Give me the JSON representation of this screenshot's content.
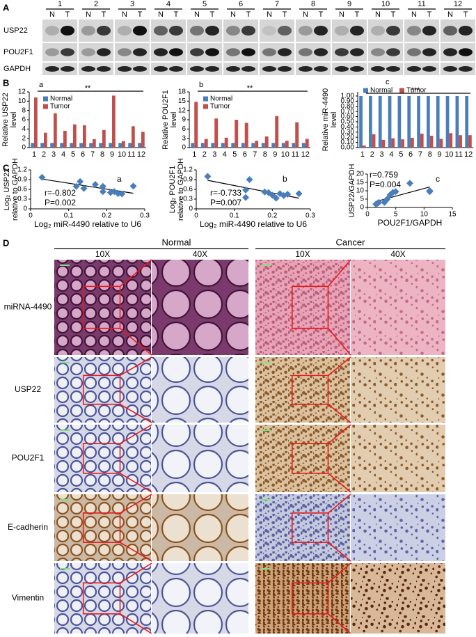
{
  "panel_labels": [
    "A",
    "B",
    "C",
    "D"
  ],
  "blot": {
    "lanes": [
      "1",
      "2",
      "3",
      "4",
      "5",
      "6",
      "7",
      "8",
      "9",
      "10",
      "11",
      "12"
    ],
    "lane_sublabels": [
      "N",
      "T"
    ],
    "proteins": [
      "USP22",
      "POU2F1",
      "GAPDH"
    ]
  },
  "chart_data": [
    {
      "type": "bar",
      "panel_label": "a",
      "y_label": [
        "Relative USP22",
        "level"
      ],
      "annotation": "**",
      "categories": [
        "1",
        "2",
        "3",
        "4",
        "5",
        "6",
        "7",
        "8",
        "9",
        "10",
        "11",
        "12"
      ],
      "series": [
        {
          "name": "Normal",
          "color": "#4a7ebb",
          "values": [
            1,
            1,
            1,
            1,
            1,
            1,
            1,
            1,
            1,
            1,
            1,
            1
          ]
        },
        {
          "name": "Tumor",
          "color": "#c0504d",
          "values": [
            10.8,
            3.2,
            7.4,
            3.6,
            5,
            4.8,
            1.8,
            3.8,
            11.2,
            1.4,
            4.6,
            3.4
          ]
        }
      ],
      "ylim": [
        0,
        12
      ],
      "yticks": [
        0,
        2,
        4,
        6,
        8,
        10,
        12
      ]
    },
    {
      "type": "bar",
      "panel_label": "b",
      "y_label": [
        "Relative POU2F1",
        "level"
      ],
      "annotation": "**",
      "categories": [
        "1",
        "2",
        "3",
        "4",
        "5",
        "6",
        "7",
        "8",
        "9",
        "10",
        "11",
        "12"
      ],
      "series": [
        {
          "name": "Normal",
          "color": "#4a7ebb",
          "values": [
            1.5,
            1.5,
            1.5,
            1.5,
            1.5,
            1.5,
            1.5,
            1.5,
            1.5,
            1.5,
            1.5,
            1.5
          ]
        },
        {
          "name": "Tumor",
          "color": "#c0504d",
          "values": [
            14.8,
            2.8,
            9.4,
            3.2,
            9,
            8,
            2.2,
            3.6,
            10.2,
            2.2,
            8.2,
            2.8
          ]
        }
      ],
      "ylim": [
        0,
        18
      ],
      "yticks": [
        0,
        3,
        6,
        9,
        12,
        15,
        18
      ]
    },
    {
      "type": "bar",
      "panel_label": "c",
      "y_label": [
        "Relative miR-4490",
        "level"
      ],
      "annotation": "***",
      "categories": [
        "1",
        "2",
        "3",
        "4",
        "5",
        "6",
        "7",
        "8",
        "9",
        "10",
        "11",
        "12"
      ],
      "series": [
        {
          "name": "Normal",
          "color": "#4a7ebb",
          "values": [
            1,
            1,
            1,
            1,
            1,
            1,
            1,
            1,
            1,
            1,
            1,
            1
          ]
        },
        {
          "name": "Tumor",
          "color": "#c0504d",
          "values": [
            0.04,
            0.26,
            0.15,
            0.18,
            0.16,
            0.19,
            0.27,
            0.23,
            0.17,
            0.28,
            0.24,
            0.24
          ]
        }
      ],
      "ylim": [
        0,
        1.08
      ],
      "yticks": [
        {
          "value": 0,
          "label": "0.00"
        },
        {
          "value": 0.1,
          "label": "0.10"
        },
        {
          "value": 0.2,
          "label": "0.20"
        },
        {
          "value": 0.3,
          "label": "0.30"
        },
        {
          "value": 0.4,
          "label": "0.40"
        },
        {
          "value": 0.5,
          "label": "0.50"
        },
        {
          "value": 0.6,
          "label": "0.60"
        },
        {
          "value": 0.7,
          "label": "0.70"
        },
        {
          "value": 0.8,
          "label": "0.80"
        },
        {
          "value": 0.9,
          "label": "0.90"
        },
        {
          "value": 1,
          "label": "1.00"
        }
      ]
    },
    {
      "type": "scatter",
      "panel_label": "a",
      "y_label": [
        "Log₂ USP22",
        "relative to GAPDH"
      ],
      "x_label": "Log₂ miR-4490 relative to U6",
      "r_text": "r=-0.802",
      "p_text": "P=0.002",
      "color": "#4a7ebb",
      "x": [
        0.03,
        0.13,
        0.12,
        0.14,
        0.17,
        0.19,
        0.19,
        0.21,
        0.22,
        0.23,
        0.24,
        0.27
      ],
      "values": [
        0.97,
        0.84,
        0.69,
        0.63,
        0.75,
        0.69,
        0.53,
        0.5,
        0.53,
        0.47,
        0.46,
        0.7
      ],
      "xlim": [
        0,
        0.3
      ],
      "xticks": [
        0,
        0.1,
        0.2,
        0.3
      ],
      "ylim": [
        0,
        1.2
      ],
      "yticks": [
        0,
        0.3,
        0.6,
        0.9,
        1.2
      ]
    },
    {
      "type": "scatter",
      "panel_label": "b",
      "y_label": [
        "Log₂ POU2F1",
        "relative to GAPDH"
      ],
      "x_label": "Log₂ miR-4490 relative to U6",
      "r_text": "r=-0.733",
      "p_text": "P=0.007",
      "color": "#4a7ebb",
      "x": [
        0.03,
        0.13,
        0.14,
        0.13,
        0.18,
        0.19,
        0.2,
        0.21,
        0.22,
        0.23,
        0.24,
        0.27
      ],
      "values": [
        1.0,
        0.58,
        0.9,
        0.35,
        0.52,
        0.5,
        0.42,
        0.33,
        0.47,
        0.41,
        0.45,
        0.47
      ],
      "xlim": [
        0,
        0.3
      ],
      "xticks": [
        0,
        0.1,
        0.2,
        0.3
      ],
      "ylim": [
        0,
        1.2
      ],
      "yticks": [
        0,
        0.3,
        0.6,
        0.9,
        1.2
      ]
    },
    {
      "type": "scatter",
      "panel_label": "c",
      "y_label": [
        "USP22/GAPDH"
      ],
      "x_label": "POU2F1/GAPDH",
      "r_text": "r=0.759",
      "p_text": "P=0.004",
      "color": "#4a7ebb",
      "x": [
        1.5,
        1.8,
        2,
        3,
        3.2,
        3.5,
        4,
        4.5,
        5,
        7.5,
        11,
        11
      ],
      "values": [
        2,
        2.5,
        3,
        3,
        4,
        5,
        7.5,
        9,
        9.5,
        14.5,
        10,
        9.5
      ],
      "xlim": [
        0,
        15
      ],
      "xticks": [
        0,
        5,
        10,
        15
      ],
      "ylim": [
        0,
        20
      ],
      "yticks": [
        0,
        5,
        10,
        15,
        20
      ]
    }
  ],
  "ihc": {
    "groups": [
      "Normal",
      "Cancer"
    ],
    "magnifications": [
      "10X",
      "40X"
    ],
    "rows": [
      "miRNA-4490",
      "USP22",
      "POU2F1",
      "E-cadherin",
      "Vimentin"
    ]
  }
}
